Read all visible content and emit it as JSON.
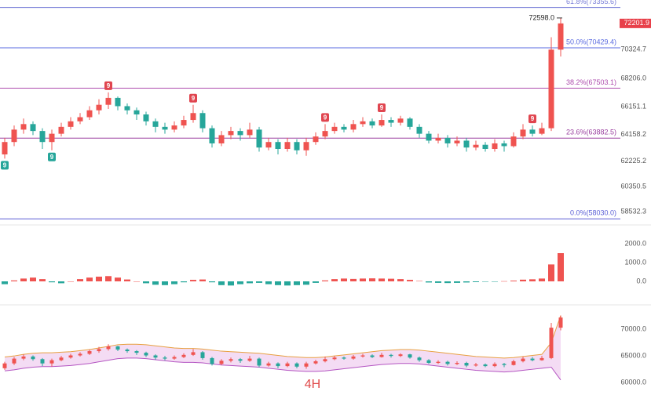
{
  "timeframe": "4H",
  "chart_data": [
    {
      "type": "candlestick",
      "colors": {
        "up": "#ef5350",
        "down": "#26a69a"
      },
      "ylim": [
        57700,
        73900
      ],
      "yticks": [
        70324.7,
        {
          "value": 68206,
          "label": "68206.0"
        },
        66151.1,
        64158.2,
        62225.2,
        60350.5,
        58532.3
      ],
      "open": [
        62700,
        63600,
        64500,
        64900,
        64400,
        63600,
        64200,
        64700,
        65100,
        65400,
        65900,
        66300,
        66800,
        66200,
        65900,
        65600,
        65100,
        64700,
        64500,
        64800,
        65200,
        65700,
        64600,
        63500,
        64100,
        64400,
        64100,
        64500,
        63200,
        63600,
        63100,
        63600,
        63000,
        63600,
        64000,
        64400,
        64700,
        64500,
        64900,
        65100,
        64800,
        65200,
        65000,
        65300,
        64700,
        64200,
        63700,
        63900,
        63500,
        63700,
        63200,
        63400,
        63100,
        63500,
        63300,
        64000,
        64500,
        64200,
        64600,
        70300
      ],
      "high": [
        63900,
        64800,
        65300,
        65100,
        64600,
        64500,
        65000,
        65400,
        65700,
        66200,
        66700,
        67200,
        66900,
        66400,
        66100,
        65800,
        65300,
        65000,
        65100,
        65500,
        66300,
        65900,
        64800,
        64400,
        64700,
        64600,
        65000,
        64700,
        63900,
        63800,
        63900,
        63800,
        63900,
        64300,
        64900,
        65000,
        64900,
        65200,
        65400,
        65300,
        65600,
        65400,
        65500,
        65400,
        64900,
        64400,
        64200,
        64100,
        64000,
        63900,
        63700,
        63600,
        63800,
        63700,
        64300,
        64900,
        64800,
        65000,
        71200,
        72598
      ],
      "low": [
        62400,
        63300,
        64200,
        64100,
        63100,
        63000,
        64000,
        64500,
        64900,
        65200,
        65600,
        66000,
        65900,
        65600,
        65200,
        64800,
        64300,
        64200,
        64300,
        64600,
        65000,
        64300,
        63200,
        63300,
        63800,
        63700,
        63900,
        62900,
        63000,
        62700,
        62900,
        62700,
        62600,
        63400,
        63800,
        64200,
        64300,
        64300,
        64700,
        64600,
        64700,
        64700,
        64800,
        64500,
        63900,
        63500,
        63500,
        63200,
        63300,
        62900,
        63000,
        62900,
        62900,
        62900,
        63200,
        63800,
        64000,
        64100,
        64400,
        69800
      ],
      "close": [
        63600,
        64500,
        64900,
        64400,
        63600,
        64200,
        64700,
        65100,
        65400,
        65900,
        66300,
        66800,
        66200,
        65900,
        65600,
        65100,
        64700,
        64500,
        64800,
        65200,
        65700,
        64600,
        63500,
        64100,
        64400,
        64100,
        64500,
        63200,
        63600,
        63100,
        63600,
        63000,
        63600,
        64000,
        64400,
        64700,
        64500,
        64900,
        65100,
        64800,
        65200,
        65000,
        65300,
        64700,
        64200,
        63700,
        63900,
        63500,
        63700,
        63200,
        63400,
        63100,
        63500,
        63300,
        64000,
        64500,
        64200,
        64600,
        70300,
        72201.9
      ],
      "levels": [
        {
          "value": 73355.6,
          "label": "61.8%(73355.6)",
          "color": "#7a7fd8"
        },
        {
          "value": 70429.4,
          "label": "50.0%(70429.4)",
          "color": "#5a6be0"
        },
        {
          "value": 67503.1,
          "label": "38.2%(67503.1)",
          "color": "#ad4cad"
        },
        {
          "value": 63882.5,
          "label": "23.6%(63882.5)",
          "color": "#9a3f9f"
        },
        {
          "value": 58030,
          "label": "0.0%(58030.0)",
          "color": "#5a5fd6"
        }
      ],
      "markers": [
        {
          "index": 0,
          "label": "9",
          "color": "#26a69a",
          "side": "below"
        },
        {
          "index": 5,
          "label": "9",
          "color": "#26a69a",
          "side": "below"
        },
        {
          "index": 11,
          "label": "9",
          "color": "#e0454f",
          "side": "above"
        },
        {
          "index": 20,
          "label": "9",
          "color": "#e0454f",
          "side": "above"
        },
        {
          "index": 34,
          "label": "9",
          "color": "#e0454f",
          "side": "above"
        },
        {
          "index": 40,
          "label": "9",
          "color": "#e0454f",
          "side": "above"
        },
        {
          "index": 56,
          "label": "9",
          "color": "#e0454f",
          "side": "above"
        }
      ],
      "annotation": {
        "value": 72598,
        "label": "72598.0"
      },
      "price_label": {
        "value": 72201.9,
        "label": "72201.9",
        "color": "#e8404a"
      }
    },
    {
      "type": "bar",
      "colors": {
        "up": "#ef5350",
        "down": "#26a69a"
      },
      "ylim": [
        -875,
        2875
      ],
      "yticks": [
        {
          "value": 2000,
          "label": "2000.0"
        },
        {
          "value": 1000,
          "label": "1000.0"
        },
        {
          "value": 0,
          "label": "0.0"
        }
      ],
      "values": [
        -150,
        50,
        150,
        200,
        120,
        -50,
        -100,
        0,
        120,
        200,
        250,
        280,
        200,
        100,
        0,
        -100,
        -180,
        -200,
        -150,
        -50,
        80,
        100,
        -50,
        -200,
        -220,
        -150,
        -100,
        -80,
        -150,
        -200,
        -220,
        -200,
        -180,
        -80,
        50,
        120,
        150,
        130,
        150,
        160,
        150,
        140,
        120,
        80,
        20,
        -60,
        -80,
        -90,
        -80,
        -60,
        -40,
        -20,
        -10,
        10,
        40,
        90,
        110,
        150,
        900,
        1500
      ]
    },
    {
      "type": "band",
      "color": "#b455c2",
      "fill": "#f4dcf4",
      "ylim": [
        59000,
        73700
      ],
      "yticks": [
        {
          "value": 70000,
          "label": "70000.0"
        },
        {
          "value": 65000,
          "label": "65000.0"
        },
        {
          "value": 60000,
          "label": "60000.0"
        }
      ],
      "upper": [
        64800,
        65000,
        65300,
        65500,
        65600,
        65600,
        65700,
        65800,
        66000,
        66200,
        66500,
        66800,
        67100,
        67200,
        67200,
        67100,
        66900,
        66700,
        66500,
        66400,
        66400,
        66300,
        66100,
        65900,
        65800,
        65700,
        65600,
        65500,
        65300,
        65100,
        64900,
        64800,
        64700,
        64700,
        64800,
        65000,
        65200,
        65400,
        65600,
        65800,
        66000,
        66100,
        66200,
        66200,
        66100,
        65900,
        65700,
        65500,
        65300,
        65100,
        64900,
        64800,
        64700,
        64600,
        64700,
        64900,
        65100,
        65300,
        67500,
        72600
      ],
      "lower": [
        62200,
        62400,
        62700,
        62900,
        63000,
        63000,
        63100,
        63200,
        63400,
        63600,
        63900,
        64200,
        64500,
        64600,
        64600,
        64500,
        64300,
        64100,
        63900,
        63800,
        63800,
        63700,
        63500,
        63300,
        63200,
        63100,
        63000,
        62900,
        62700,
        62500,
        62300,
        62200,
        62100,
        62100,
        62200,
        62400,
        62600,
        62800,
        63000,
        63200,
        63400,
        63500,
        63600,
        63600,
        63500,
        63300,
        63100,
        62900,
        62700,
        62500,
        62300,
        62200,
        62100,
        62000,
        62100,
        62300,
        62500,
        62700,
        62900,
        60500
      ]
    }
  ]
}
